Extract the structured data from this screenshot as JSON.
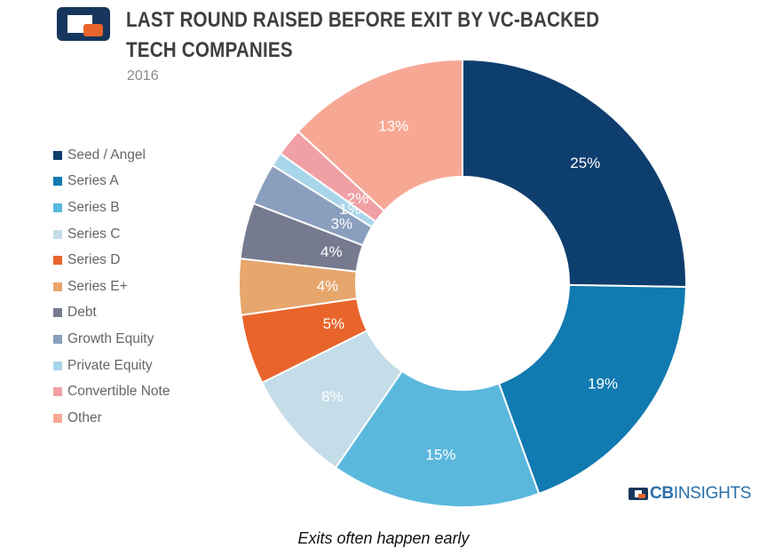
{
  "header": {
    "title": "LAST ROUND RAISED BEFORE EXIT BY VC-BACKED TECH COMPANIES",
    "subtitle": "2016"
  },
  "brand": {
    "name_bold": "CB",
    "name_light": "INSIGHTS"
  },
  "caption": "Exits often happen early",
  "colors": {
    "logo_blue": "#17365d",
    "logo_orange": "#e8642b",
    "brand_blue": "#2a6fa8"
  },
  "chart_data": {
    "type": "pie",
    "donut": true,
    "title": "LAST ROUND RAISED BEFORE EXIT BY VC-BACKED TECH COMPANIES",
    "subtitle": "2016",
    "legend_position": "left",
    "labels": [
      "Seed / Angel",
      "Series A",
      "Series B",
      "Series C",
      "Series D",
      "Series E+",
      "Debt",
      "Growth Equity",
      "Private Equity",
      "Convertible Note",
      "Other"
    ],
    "values": [
      25,
      19,
      15,
      8,
      5,
      4,
      4,
      3,
      1,
      2,
      13
    ],
    "value_labels": [
      "25%",
      "19%",
      "15%",
      "8%",
      "5%",
      "4%",
      "4%",
      "3%",
      "1%",
      "2%",
      "13%"
    ],
    "colors": [
      "#0e3e6e",
      "#117ab0",
      "#5bb8dd",
      "#c4dde8",
      "#e8642b",
      "#e6a66c",
      "#767a8f",
      "#8a9fbd",
      "#a8d5ea",
      "#f0a0a5",
      "#f7a895"
    ]
  }
}
